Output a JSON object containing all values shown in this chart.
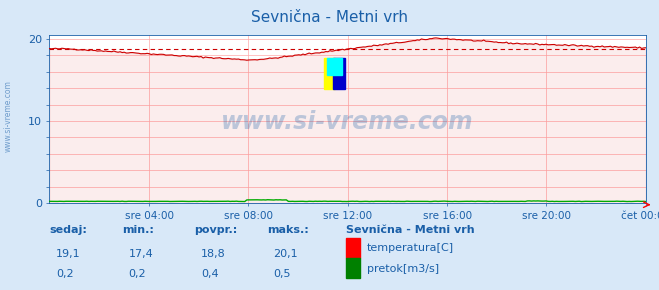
{
  "title": "Sevnična - Metni vrh",
  "bg_color": "#d8e8f8",
  "plot_bg_color": "#ffffff",
  "grid_color": "#ffaaaa",
  "x_ticks_labels": [
    "sre 04:00",
    "sre 08:00",
    "sre 12:00",
    "sre 16:00",
    "sre 20:00",
    "čet 00:00"
  ],
  "x_ticks_pos": [
    0.167,
    0.333,
    0.5,
    0.667,
    0.833,
    1.0
  ],
  "y_ticks": [
    0,
    2,
    4,
    6,
    8,
    10,
    12,
    14,
    16,
    18,
    20
  ],
  "ylim": [
    0,
    20.5
  ],
  "xlim": [
    0,
    1
  ],
  "temp_color": "#cc0000",
  "pretok_color": "#00aa00",
  "avg_line_color": "#cc0000",
  "watermark_color": "#1a5fa8",
  "title_color": "#1a5fa8",
  "tick_label_color": "#1a5fa8",
  "bottom_text_color": "#1a5fa8",
  "sidebar_text_color": "#1a5fa8",
  "figsize": [
    6.59,
    2.9
  ],
  "dpi": 100,
  "avg_temp": 18.8,
  "sedaj_temp": "19,1",
  "min_temp": "17,4",
  "povpr_temp": "18,8",
  "maks_temp": "20,1",
  "sedaj_pretok": "0,2",
  "min_pretok": "0,2",
  "povpr_pretok": "0,4",
  "maks_pretok": "0,5",
  "legend_title": "Sevnična - Metni vrh"
}
